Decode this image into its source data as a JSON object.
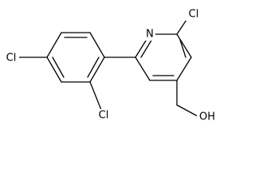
{
  "atoms": [
    "N",
    "Cl",
    "Cl",
    "Cl",
    "OH"
  ]
}
